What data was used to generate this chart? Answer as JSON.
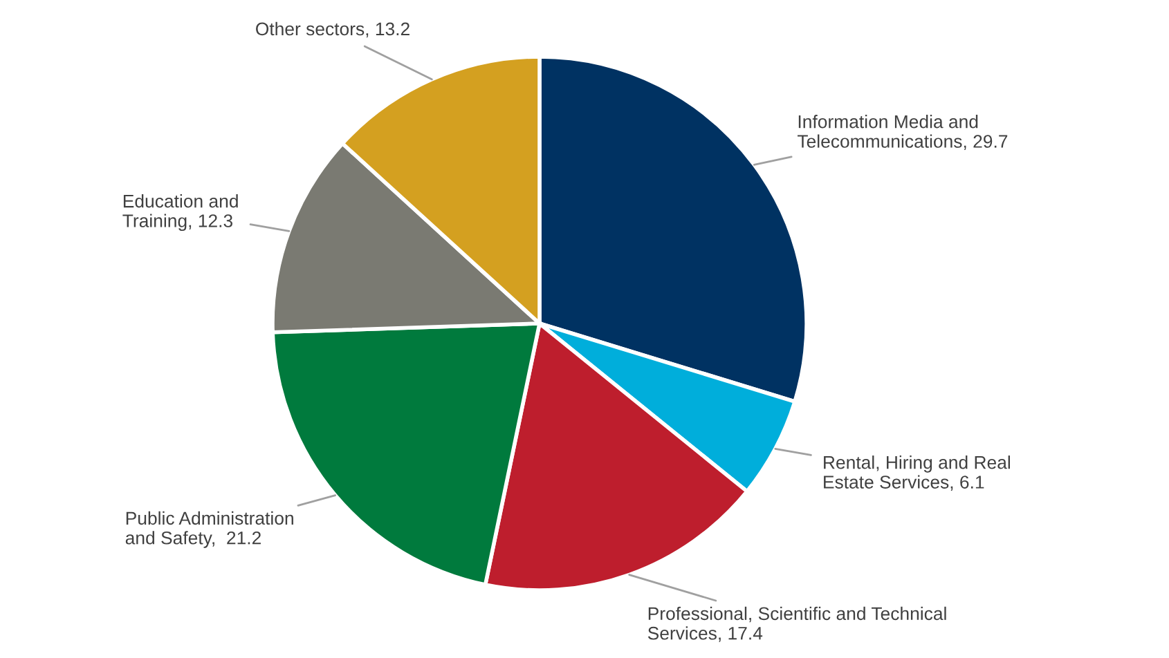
{
  "chart_data": {
    "type": "pie",
    "categories": [
      "Information Media and\nTelecommunications, 29.7",
      "Rental, Hiring and Real\nEstate Services, 6.1",
      "Professional, Scientific and Technical\nServices, 17.4",
      "Public Administration\nand Safety,  21.2",
      "Education and\nTraining, 12.3",
      "Other sectors, 13.2"
    ],
    "values": [
      29.7,
      6.1,
      17.4,
      21.2,
      12.3,
      13.2
    ],
    "colors": [
      "#003262",
      "#00aedb",
      "#be1e2d",
      "#007a3d",
      "#7a7a72",
      "#d4a020"
    ]
  }
}
